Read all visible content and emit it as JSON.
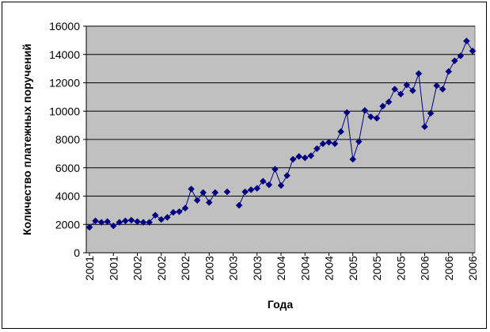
{
  "chart_data": {
    "type": "line",
    "title": "",
    "xlabel": "Года",
    "ylabel": "Количество платежных поручений",
    "ylim": [
      0,
      16000
    ],
    "yticks": [
      "0",
      "2000",
      "4000",
      "6000",
      "8000",
      "10000",
      "12000",
      "14000",
      "16000"
    ],
    "grid": true,
    "legend": "none",
    "colors": {
      "plot_background": "#c0c0c0",
      "series": "#000080",
      "gridline": "#000000"
    },
    "xtick_labels": [
      "2001",
      "2001",
      "2002",
      "2002",
      "2002",
      "2003",
      "2003",
      "2003",
      "2004",
      "2004",
      "2004",
      "2005",
      "2005",
      "2005",
      "2006",
      "2006",
      "2006"
    ],
    "series": [
      {
        "values": [
          1800,
          2250,
          2150,
          2200,
          1900,
          2150,
          2250,
          2300,
          2200,
          2150,
          2150,
          2650,
          2350,
          2500,
          2850,
          2900,
          3150,
          4500,
          3700,
          4250,
          3550,
          4250,
          null,
          4300,
          null,
          3350,
          4300,
          4450,
          4550,
          5050,
          4800,
          5900,
          4750,
          5450,
          6600,
          6800,
          6700,
          6850,
          7350,
          7700,
          7800,
          7700,
          8550,
          9900,
          6600,
          7850,
          10050,
          9600,
          9500,
          10350,
          10650,
          11550,
          11200,
          11850,
          11450,
          12650,
          8900,
          9850,
          11800,
          11550,
          12800,
          13550,
          13900,
          14950,
          14250
        ]
      }
    ]
  }
}
